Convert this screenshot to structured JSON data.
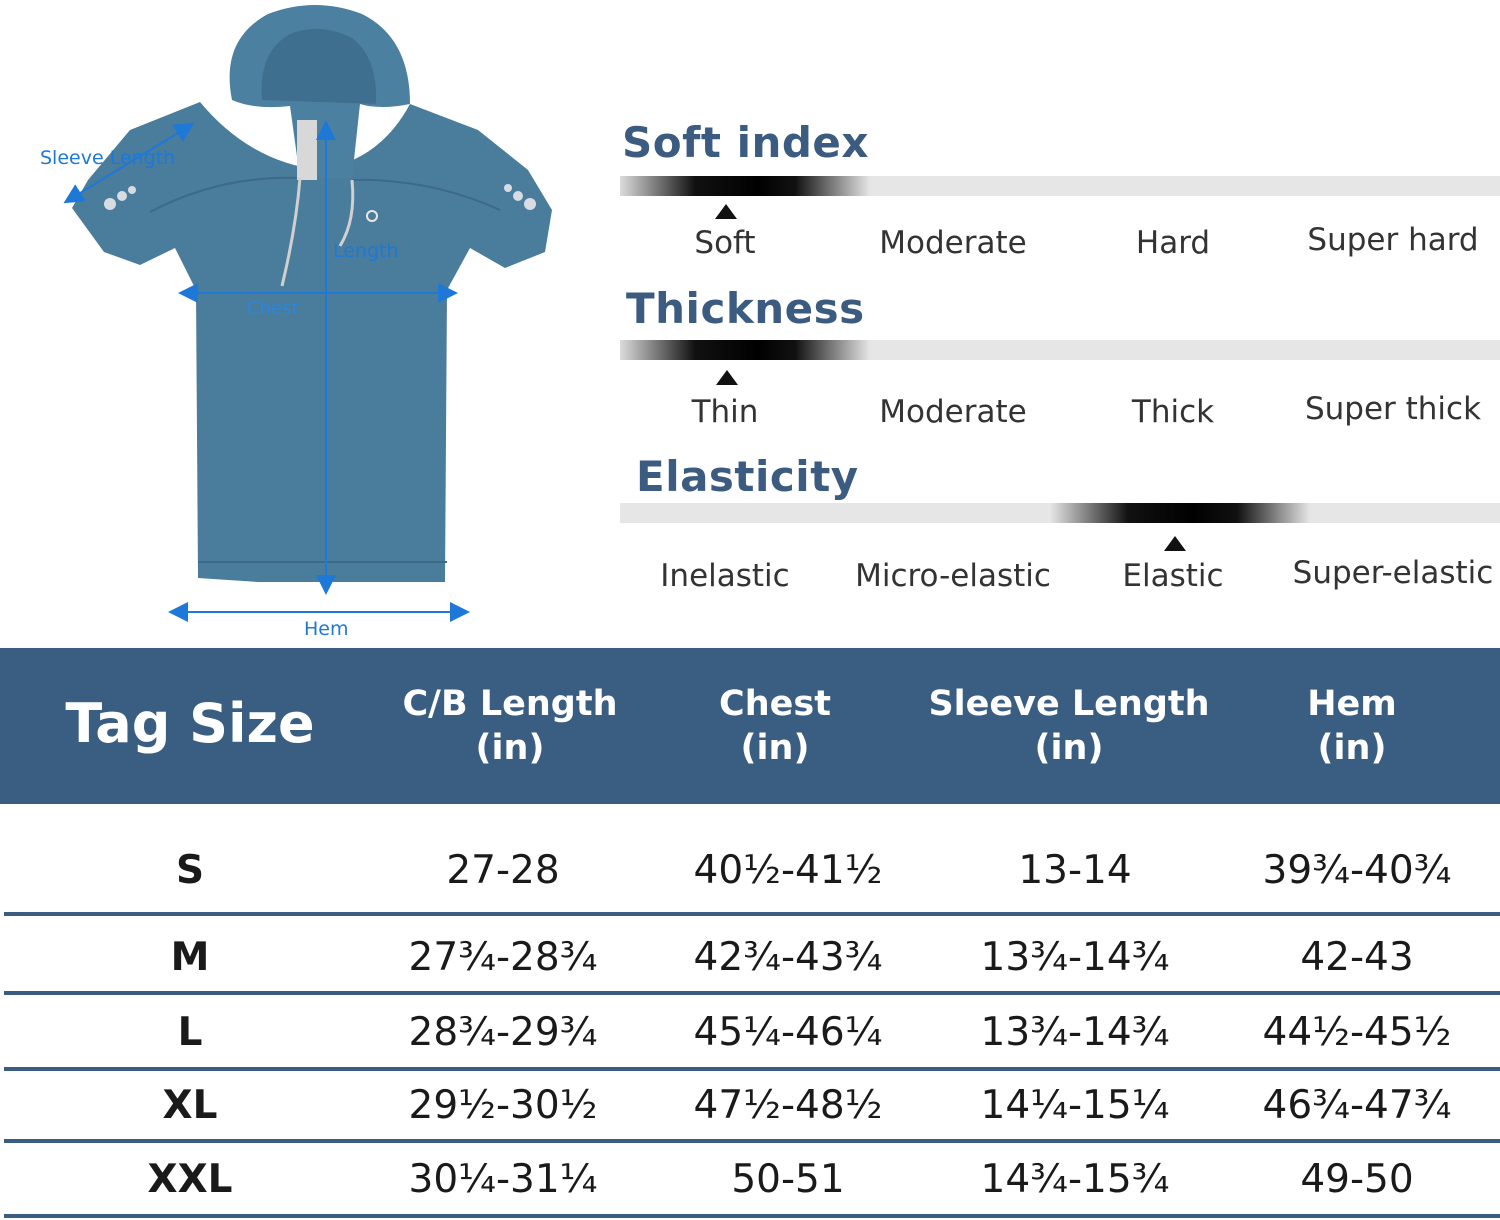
{
  "garment": {
    "icon": "hooded-short-sleeve-shirt-icon",
    "color": "#4a7c9c",
    "measure_color": "#1e78d8",
    "labels": {
      "sleeve_length": "Sleeve Length",
      "length": "Length",
      "chest": "Chest",
      "hem": "Hem"
    }
  },
  "indices": [
    {
      "title": "Soft index",
      "options": [
        "Soft",
        "Moderate",
        "Hard",
        "Super hard"
      ],
      "selected": 0
    },
    {
      "title": "Thickness",
      "options": [
        "Thin",
        "Moderate",
        "Thick",
        "Super thick"
      ],
      "selected": 0
    },
    {
      "title": "Elasticity",
      "options": [
        "Inelastic",
        "Micro-elastic",
        "Elastic",
        "Super-elastic"
      ],
      "selected": 2
    }
  ],
  "size_table": {
    "header_color": "#3a5d82",
    "tag_header": "Tag Size",
    "columns": [
      {
        "name": "C/B Length",
        "unit": "(in)"
      },
      {
        "name": "Chest",
        "unit": "(in)"
      },
      {
        "name": "Sleeve Length",
        "unit": "(in)"
      },
      {
        "name": "Hem",
        "unit": "(in)"
      }
    ],
    "rows": [
      {
        "size": "S",
        "values": [
          "27-28",
          "40½-41½",
          "13-14",
          "39¾-40¾"
        ]
      },
      {
        "size": "M",
        "values": [
          "27¾-28¾",
          "42¾-43¾",
          "13¾-14¾",
          "42-43"
        ]
      },
      {
        "size": "L",
        "values": [
          "28¾-29¾",
          "45¼-46¼",
          "13¾-14¾",
          "44½-45½"
        ]
      },
      {
        "size": "XL",
        "values": [
          "29½-30½",
          "47½-48½",
          "14¼-15¼",
          "46¾-47¾"
        ]
      },
      {
        "size": "XXL",
        "values": [
          "30¼-31¼",
          "50-51",
          "14¾-15¾",
          "49-50"
        ]
      }
    ]
  }
}
